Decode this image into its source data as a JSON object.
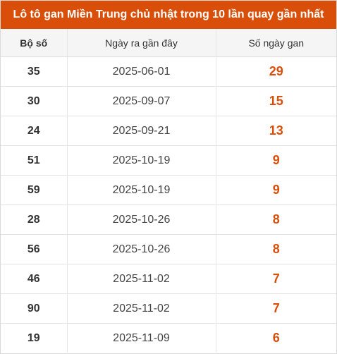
{
  "title": "Lô tô gan Miền Trung chủ nhật trong 10 lần quay gần nhất",
  "accent_color": "#d94f0a",
  "table": {
    "headers": [
      "Bộ số",
      "Ngày ra gần đây",
      "Số ngày gan"
    ],
    "rows": [
      {
        "number": "35",
        "date": "2025-06-01",
        "days": "29"
      },
      {
        "number": "30",
        "date": "2025-09-07",
        "days": "15"
      },
      {
        "number": "24",
        "date": "2025-09-21",
        "days": "13"
      },
      {
        "number": "51",
        "date": "2025-10-19",
        "days": "9"
      },
      {
        "number": "59",
        "date": "2025-10-19",
        "days": "9"
      },
      {
        "number": "28",
        "date": "2025-10-26",
        "days": "8"
      },
      {
        "number": "56",
        "date": "2025-10-26",
        "days": "8"
      },
      {
        "number": "46",
        "date": "2025-11-02",
        "days": "7"
      },
      {
        "number": "90",
        "date": "2025-11-02",
        "days": "7"
      },
      {
        "number": "19",
        "date": "2025-11-09",
        "days": "6"
      }
    ]
  }
}
